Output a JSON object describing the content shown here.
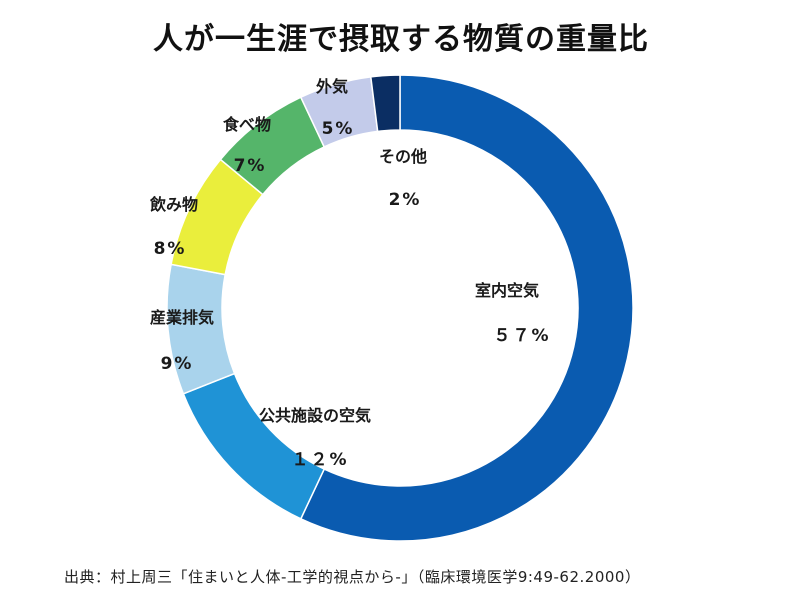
{
  "title": "人が一生涯で摂取する物質の重量比",
  "source": "出典：村上周三「住まいと人体-工学的視点から-」（臨床環境医学9:49-62.2000）",
  "chart_data": {
    "type": "pie",
    "style": "donut",
    "start": "top, clockwise",
    "slices": [
      {
        "label": "室内空気",
        "value": 57,
        "value_text": "５７%",
        "color": "#0a5bb0"
      },
      {
        "label": "公共施設の空気",
        "value": 12,
        "value_text": "１２%",
        "color": "#1f93d6"
      },
      {
        "label": "産業排気",
        "value": 9,
        "value_text": "9%",
        "color": "#a9d3ec"
      },
      {
        "label": "飲み物",
        "value": 8,
        "value_text": "8%",
        "color": "#eaee3c"
      },
      {
        "label": "食べ物",
        "value": 7,
        "value_text": "7%",
        "color": "#55b56a"
      },
      {
        "label": "外気",
        "value": 5,
        "value_text": "5%",
        "color": "#c3cbea"
      },
      {
        "label": "その他",
        "value": 2,
        "value_text": "2%",
        "color": "#0b2e63"
      }
    ]
  }
}
